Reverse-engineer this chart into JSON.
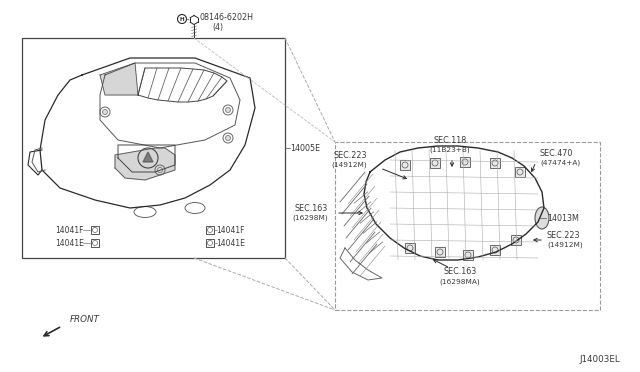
{
  "bg_color": "#ffffff",
  "line_color": "#2a2a2a",
  "label_color": "#3a3a3a",
  "fig_width": 6.4,
  "fig_height": 3.72,
  "diagram_id": "J14003EL",
  "parts": {
    "bolt_label": "08146-6202H",
    "bolt_sub": "(4)",
    "engine_cover": "14005E",
    "stud_f": "14041F",
    "stud_e": "14041E",
    "manifold": "14013M",
    "sec_223a_l1": "SEC.223",
    "sec_223a_l2": "(14912M)",
    "sec_118_l1": "SEC.118",
    "sec_118_l2": "(11B23+B)",
    "sec_470_l1": "SEC.470",
    "sec_470_l2": "(47474+A)",
    "sec_163a_l1": "SEC.163",
    "sec_163a_l2": "(16298M)",
    "sec_223b_l1": "SEC.223",
    "sec_223b_l2": "(14912M)",
    "sec_163b_l1": "SEC.163",
    "sec_163b_l2": "(16298MA)",
    "front": "FRONT"
  }
}
